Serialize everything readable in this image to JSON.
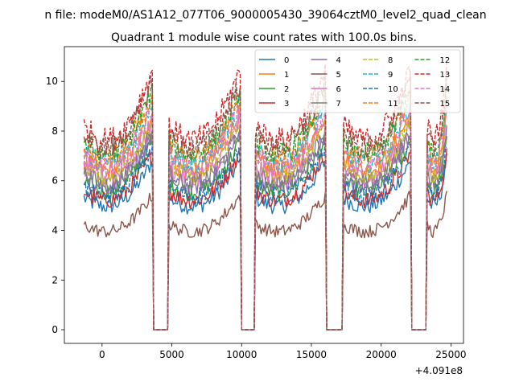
{
  "chart_data": {
    "type": "line",
    "suptitle": "n file: modeM0/AS1A12_077T06_9000005430_39064cztM0_level2_quad_clean",
    "title": "Quadrant 1 module wise count rates with 100.0s bins.",
    "xlabel": "",
    "ylabel": "",
    "x_offset_label": "+4.091e8",
    "xlim": [
      -2700,
      25900
    ],
    "ylim": [
      -0.55,
      11.4
    ],
    "x_ticks": [
      0,
      5000,
      10000,
      15000,
      20000,
      25000
    ],
    "x_tick_labels": [
      "0",
      "5000",
      "10000",
      "15000",
      "20000",
      "25000"
    ],
    "y_ticks": [
      0,
      2,
      4,
      6,
      8,
      10
    ],
    "y_tick_labels": [
      "0",
      "2",
      "4",
      "6",
      "8",
      "10"
    ],
    "x_range": [
      -1300,
      24700
    ],
    "bin_seconds": 100,
    "on_intervals": [
      [
        -1300,
        3600
      ],
      [
        4800,
        9900
      ],
      [
        11000,
        16000
      ],
      [
        17300,
        22100
      ],
      [
        23300,
        24700
      ]
    ],
    "legend_position": "upper right",
    "legend_columns": 4,
    "series": [
      {
        "name": "0",
        "color": "#1f77b4",
        "dash": "solid",
        "level": 5.9
      },
      {
        "name": "1",
        "color": "#ff7f0e",
        "dash": "solid",
        "level": 7.6
      },
      {
        "name": "2",
        "color": "#2ca02c",
        "dash": "solid",
        "level": 6.6
      },
      {
        "name": "3",
        "color": "#d62728",
        "dash": "solid",
        "level": 6.2
      },
      {
        "name": "4",
        "color": "#9467bd",
        "dash": "solid",
        "level": 6.9
      },
      {
        "name": "5",
        "color": "#8c564b",
        "dash": "solid",
        "level": 4.7
      },
      {
        "name": "6",
        "color": "#e377c2",
        "dash": "solid",
        "level": 7.3
      },
      {
        "name": "7",
        "color": "#7f7f7f",
        "dash": "solid",
        "level": 7.0
      },
      {
        "name": "8",
        "color": "#bcbd22",
        "dash": "dashed",
        "level": 7.4
      },
      {
        "name": "9",
        "color": "#17becf",
        "dash": "dashed",
        "level": 8.0
      },
      {
        "name": "10",
        "color": "#1f77b4",
        "dash": "dashed",
        "level": 6.4
      },
      {
        "name": "11",
        "color": "#ff7f0e",
        "dash": "dashed",
        "level": 8.2
      },
      {
        "name": "12",
        "color": "#2ca02c",
        "dash": "dashed",
        "level": 8.4
      },
      {
        "name": "13",
        "color": "#d62728",
        "dash": "dashed",
        "level": 9.1
      },
      {
        "name": "14",
        "color": "#e377c2",
        "dash": "dashed",
        "level": 7.8
      },
      {
        "name": "15",
        "color": "#8c564b",
        "dash": "dashed",
        "level": 8.7
      }
    ]
  }
}
